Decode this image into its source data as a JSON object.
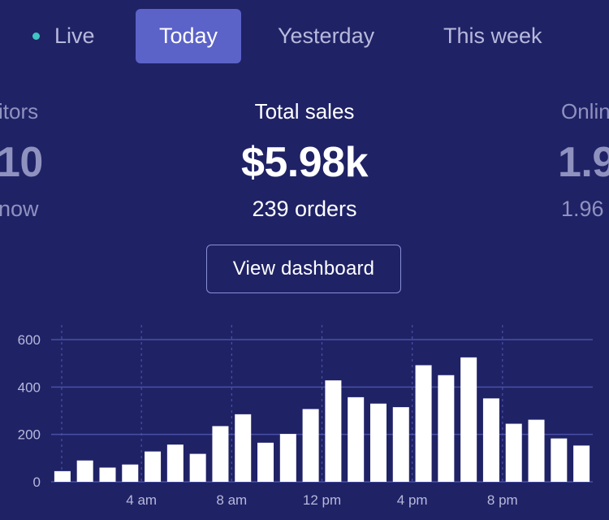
{
  "tabs": [
    {
      "label": "Live"
    },
    {
      "label": "Today"
    },
    {
      "label": "Yesterday"
    },
    {
      "label": "This week"
    }
  ],
  "left_stat": {
    "label": "itors",
    "value": "10",
    "sub": "now"
  },
  "center_stat": {
    "label": "Total sales",
    "value": "$5.98k",
    "sub": "239 orders"
  },
  "right_stat": {
    "label": "Onlin",
    "value": "1.9",
    "sub": "1.96"
  },
  "view_button": {
    "label": "View dashboard"
  },
  "colors": {
    "background": "#1f2265",
    "active_tab": "#5b62c8",
    "live_dot": "#3ec6c2",
    "bars": "#ffffff",
    "gridline": "#4a50a6"
  },
  "chart_data": {
    "type": "bar",
    "title": "",
    "xlabel": "",
    "ylabel": "",
    "ylim": [
      0,
      600
    ],
    "yticks": [
      0,
      200,
      400,
      600
    ],
    "ytick_labels": [
      "0",
      "200",
      "400",
      "600"
    ],
    "x_ticks": [
      {
        "hour": 4,
        "label": "4 am"
      },
      {
        "hour": 8,
        "label": "8 am"
      },
      {
        "hour": 12,
        "label": "12 pm"
      },
      {
        "hour": 16,
        "label": "4 pm"
      },
      {
        "hour": 20,
        "label": "8 pm"
      }
    ],
    "hours": [
      0,
      1,
      2,
      3,
      4,
      5,
      6,
      7,
      8,
      9,
      10,
      11,
      12,
      13,
      14,
      15,
      16,
      17,
      18,
      19,
      20,
      21,
      22,
      23
    ],
    "values": [
      45,
      90,
      60,
      73,
      128,
      157,
      118,
      235,
      285,
      165,
      202,
      307,
      428,
      357,
      330,
      315,
      492,
      450,
      525,
      352,
      245,
      262,
      183,
      153
    ],
    "grid": true,
    "legend": "none"
  }
}
